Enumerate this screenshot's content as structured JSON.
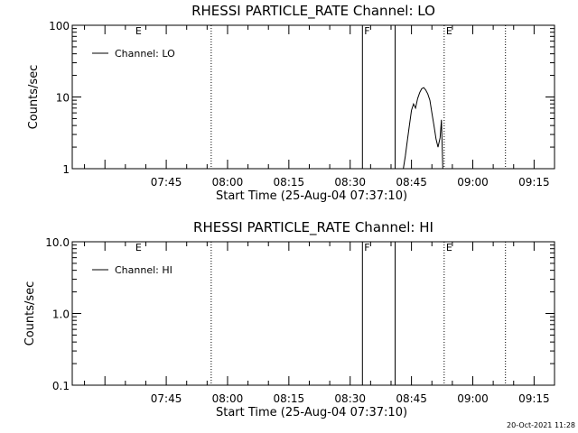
{
  "chart_data": [
    {
      "type": "line",
      "title": "RHESSI PARTICLE_RATE Channel: LO",
      "xlabel": "Start Time (25-Aug-04 07:37:10)",
      "ylabel": "Counts/sec",
      "yscale": "log",
      "ylim": [
        1,
        100
      ],
      "yticks": [
        1,
        10,
        100
      ],
      "ytick_labels": [
        "1",
        "10",
        "100"
      ],
      "xlim_minutes": [
        442,
        560
      ],
      "xticks": [
        "07:45",
        "08:00",
        "08:15",
        "08:30",
        "08:45",
        "09:00",
        "09:15"
      ],
      "grid": false,
      "legend": {
        "position": "top-left",
        "entries": [
          "Channel: LO"
        ]
      },
      "markers": [
        {
          "label": "E",
          "time": "07:37",
          "style": "none"
        },
        {
          "label": "",
          "time": "07:56",
          "style": "dotted"
        },
        {
          "label": "F",
          "time": "08:33",
          "style": "solid"
        },
        {
          "label": "",
          "time": "08:41",
          "style": "solid"
        },
        {
          "label": "E",
          "time": "08:53",
          "style": "dotted"
        },
        {
          "label": "",
          "time": "09:08",
          "style": "dotted"
        }
      ],
      "series": [
        {
          "name": "Channel: LO",
          "x": [
            "08:43:00",
            "08:43:30",
            "08:44:00",
            "08:44:30",
            "08:45:00",
            "08:45:30",
            "08:46:00",
            "08:46:30",
            "08:47:00",
            "08:47:30",
            "08:48:00",
            "08:48:30",
            "08:49:00",
            "08:49:30",
            "08:50:00",
            "08:50:30",
            "08:51:00",
            "08:51:30",
            "08:52:00",
            "08:52:20",
            "08:52:40"
          ],
          "y": [
            1.0,
            1.5,
            2.5,
            4.0,
            6.5,
            8.0,
            7.0,
            9.5,
            11.5,
            13.0,
            13.5,
            12.5,
            11.0,
            9.0,
            6.0,
            4.0,
            2.6,
            2.0,
            2.7,
            4.8,
            1.0
          ]
        }
      ]
    },
    {
      "type": "line",
      "title": "RHESSI PARTICLE_RATE Channel: HI",
      "xlabel": "Start Time (25-Aug-04 07:37:10)",
      "ylabel": "Counts/sec",
      "yscale": "log",
      "ylim": [
        0.1,
        10.0
      ],
      "yticks": [
        0.1,
        1.0,
        10.0
      ],
      "ytick_labels": [
        "0.1",
        "1.0",
        "10.0"
      ],
      "xlim_minutes": [
        442,
        560
      ],
      "xticks": [
        "07:45",
        "08:00",
        "08:15",
        "08:30",
        "08:45",
        "09:00",
        "09:15"
      ],
      "grid": false,
      "legend": {
        "position": "top-left",
        "entries": [
          "Channel: HI"
        ]
      },
      "markers": [
        {
          "label": "E",
          "time": "07:37",
          "style": "none"
        },
        {
          "label": "",
          "time": "07:56",
          "style": "dotted"
        },
        {
          "label": "F",
          "time": "08:33",
          "style": "solid"
        },
        {
          "label": "",
          "time": "08:41",
          "style": "solid"
        },
        {
          "label": "E",
          "time": "08:53",
          "style": "dotted"
        },
        {
          "label": "",
          "time": "09:08",
          "style": "dotted"
        }
      ],
      "series": [
        {
          "name": "Channel: HI",
          "x": [],
          "y": []
        }
      ]
    }
  ],
  "footer": {
    "timestamp": "20-Oct-2021 11:28"
  }
}
